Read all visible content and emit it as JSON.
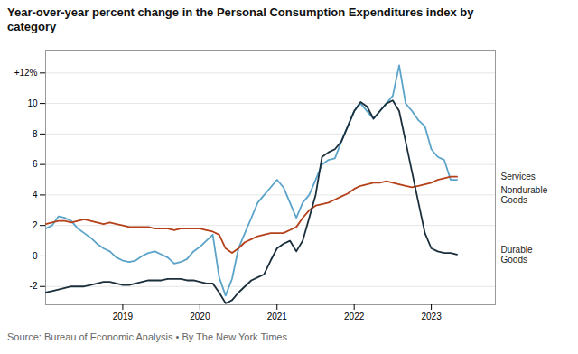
{
  "chart_data": {
    "type": "line",
    "title": "Year-over-year percent change in the Personal Consumption Expenditures index by\ncategory",
    "caption": "Source: Bureau of Economic Analysis  •  By The New York Times",
    "x": [
      2018.0,
      2018.083,
      2018.167,
      2018.25,
      2018.333,
      2018.417,
      2018.5,
      2018.583,
      2018.667,
      2018.75,
      2018.833,
      2018.917,
      2019.0,
      2019.083,
      2019.167,
      2019.25,
      2019.333,
      2019.417,
      2019.5,
      2019.583,
      2019.667,
      2019.75,
      2019.833,
      2019.917,
      2020.0,
      2020.083,
      2020.167,
      2020.25,
      2020.333,
      2020.417,
      2020.5,
      2020.583,
      2020.667,
      2020.75,
      2020.833,
      2020.917,
      2021.0,
      2021.083,
      2021.167,
      2021.25,
      2021.333,
      2021.417,
      2021.5,
      2021.583,
      2021.667,
      2021.75,
      2021.833,
      2021.917,
      2022.0,
      2022.083,
      2022.167,
      2022.25,
      2022.333,
      2022.417,
      2022.5,
      2022.583,
      2022.667,
      2022.75,
      2022.833,
      2022.917,
      2023.0,
      2023.083,
      2023.167,
      2023.25,
      2023.333
    ],
    "series": [
      {
        "name": "Nondurable\nGoods",
        "color": "#5ba3c9",
        "values": [
          1.8,
          2.0,
          2.6,
          2.5,
          2.3,
          1.8,
          1.5,
          1.2,
          0.8,
          0.5,
          0.3,
          -0.1,
          -0.3,
          -0.4,
          -0.3,
          0.0,
          0.2,
          0.3,
          0.1,
          -0.1,
          -0.5,
          -0.4,
          -0.2,
          0.3,
          0.6,
          1.0,
          1.4,
          -1.4,
          -2.6,
          -1.5,
          0.5,
          1.5,
          2.5,
          3.5,
          4.0,
          4.5,
          5.0,
          4.5,
          3.5,
          2.5,
          3.5,
          4.0,
          5.0,
          6.0,
          6.3,
          6.4,
          7.5,
          8.5,
          9.5,
          10.0,
          9.5,
          9.0,
          9.5,
          10.0,
          10.5,
          12.5,
          10.0,
          9.5,
          8.9,
          8.5,
          7.0,
          6.5,
          6.3,
          5.0,
          5.0
        ]
      },
      {
        "name": "Services",
        "color": "#b5411a",
        "values": [
          2.1,
          2.2,
          2.3,
          2.3,
          2.2,
          2.3,
          2.4,
          2.3,
          2.2,
          2.1,
          2.2,
          2.1,
          2.0,
          1.9,
          1.9,
          1.9,
          1.9,
          1.8,
          1.8,
          1.8,
          1.7,
          1.8,
          1.8,
          1.8,
          1.8,
          1.7,
          1.6,
          1.4,
          0.5,
          0.2,
          0.5,
          0.9,
          1.1,
          1.3,
          1.4,
          1.5,
          1.5,
          1.5,
          1.7,
          1.9,
          2.5,
          3.0,
          3.3,
          3.4,
          3.5,
          3.7,
          3.9,
          4.1,
          4.4,
          4.6,
          4.7,
          4.8,
          4.8,
          4.9,
          4.8,
          4.7,
          4.6,
          4.5,
          4.6,
          4.7,
          4.8,
          5.0,
          5.1,
          5.2,
          5.2
        ]
      },
      {
        "name": "Durable\nGoods",
        "color": "#1a2e3b",
        "values": [
          -2.4,
          -2.3,
          -2.2,
          -2.1,
          -2.0,
          -2.0,
          -2.0,
          -1.9,
          -1.8,
          -1.7,
          -1.7,
          -1.8,
          -1.9,
          -1.9,
          -1.8,
          -1.7,
          -1.6,
          -1.6,
          -1.6,
          -1.5,
          -1.5,
          -1.5,
          -1.6,
          -1.6,
          -1.7,
          -1.8,
          -1.8,
          -2.4,
          -3.1,
          -2.9,
          -2.4,
          -2.0,
          -1.6,
          -1.4,
          -1.2,
          -0.3,
          0.5,
          0.8,
          1.0,
          0.3,
          1.0,
          2.5,
          4.0,
          6.5,
          6.8,
          7.0,
          7.5,
          8.5,
          9.5,
          10.1,
          9.8,
          9.0,
          9.5,
          10.0,
          10.2,
          9.5,
          7.5,
          5.5,
          3.5,
          1.5,
          0.5,
          0.3,
          0.2,
          0.2,
          0.1
        ]
      }
    ],
    "xlim": [
      2018.0,
      2023.83
    ],
    "xticks": [
      2019,
      2020,
      2021,
      2022,
      2023
    ],
    "ylim": [
      -3.2,
      13.5
    ],
    "yticks": [
      -2,
      0,
      2,
      4,
      6,
      8,
      10,
      {
        "value": 12,
        "label": "+12%"
      }
    ],
    "grid": true
  }
}
